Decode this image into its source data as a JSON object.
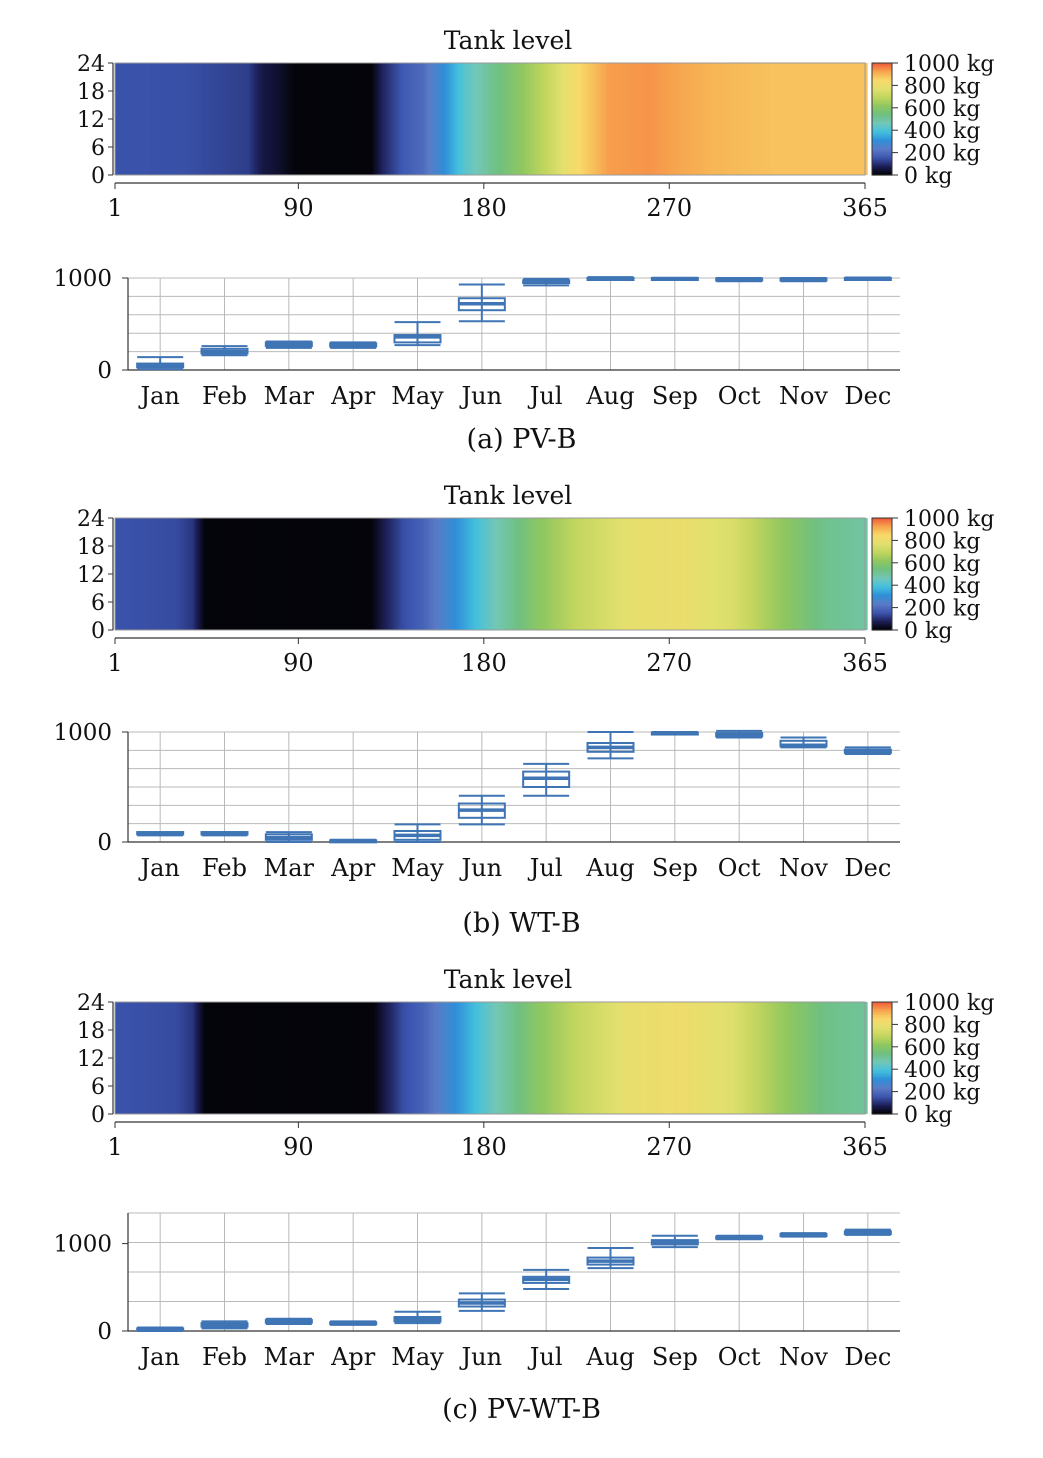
{
  "colors": {
    "ramp": [
      "#000000",
      "#1d1f58",
      "#3c56b0",
      "#5a7bc6",
      "#2f8fd8",
      "#43c0de",
      "#72c7b7",
      "#6fc080",
      "#8fc75f",
      "#c1d55e",
      "#e2e06e",
      "#f8d96a",
      "#f7a54e",
      "#f0583a"
    ],
    "box": "#3f74b5",
    "grid": "#b9b9b9",
    "axis": "#333333"
  },
  "chart_data": [
    {
      "type": "heatmap",
      "title": "Tank level",
      "caption": "(a) PV-B",
      "y_ticks": [
        "24",
        "18",
        "12",
        "6",
        "0"
      ],
      "x_ticks": [
        "1",
        "90",
        "180",
        "270",
        "365"
      ],
      "xlim": [
        1,
        365
      ],
      "colorbar": {
        "ticks": [
          "1000 kg",
          "800 kg",
          "600 kg",
          "400 kg",
          "200 kg",
          "0 kg"
        ],
        "range": [
          0,
          1000
        ]
      },
      "day_profile": [
        [
          1,
          150
        ],
        [
          35,
          145
        ],
        [
          65,
          120
        ],
        [
          72,
          60
        ],
        [
          80,
          40
        ],
        [
          88,
          10
        ],
        [
          125,
          10
        ],
        [
          130,
          80
        ],
        [
          140,
          160
        ],
        [
          150,
          200
        ],
        [
          160,
          300
        ],
        [
          170,
          420
        ],
        [
          190,
          560
        ],
        [
          210,
          700
        ],
        [
          225,
          840
        ],
        [
          240,
          930
        ],
        [
          260,
          940
        ],
        [
          290,
          900
        ],
        [
          320,
          880
        ],
        [
          365,
          880
        ]
      ]
    },
    {
      "type": "box",
      "categories": [
        "Jan",
        "Feb",
        "Mar",
        "Apr",
        "May",
        "Jun",
        "Jul",
        "Aug",
        "Sep",
        "Oct",
        "Nov",
        "Dec"
      ],
      "y_ticks": [
        "1000",
        "0"
      ],
      "ylim": [
        0,
        1000
      ],
      "boxes": [
        {
          "low": 10,
          "q1": 30,
          "med": 50,
          "q3": 70,
          "high": 140
        },
        {
          "low": 160,
          "q1": 180,
          "med": 200,
          "q3": 230,
          "high": 260
        },
        {
          "low": 240,
          "q1": 260,
          "med": 280,
          "q3": 300,
          "high": 310
        },
        {
          "low": 240,
          "q1": 255,
          "med": 270,
          "q3": 290,
          "high": 300
        },
        {
          "low": 270,
          "q1": 300,
          "med": 360,
          "q3": 380,
          "high": 520
        },
        {
          "low": 530,
          "q1": 650,
          "med": 720,
          "q3": 780,
          "high": 930
        },
        {
          "low": 920,
          "q1": 945,
          "med": 960,
          "q3": 975,
          "high": 990
        },
        {
          "low": 980,
          "q1": 990,
          "med": 995,
          "q3": 1000,
          "high": 1010
        },
        {
          "low": 985,
          "q1": 990,
          "med": 995,
          "q3": 1000,
          "high": 1000
        },
        {
          "low": 965,
          "q1": 975,
          "med": 985,
          "q3": 995,
          "high": 1000
        },
        {
          "low": 965,
          "q1": 975,
          "med": 985,
          "q3": 995,
          "high": 1000
        },
        {
          "low": 985,
          "q1": 990,
          "med": 995,
          "q3": 1000,
          "high": 1005
        }
      ]
    },
    {
      "type": "heatmap",
      "title": "Tank level",
      "caption": "(b) WT-B",
      "y_ticks": [
        "24",
        "18",
        "12",
        "6",
        "0"
      ],
      "x_ticks": [
        "1",
        "90",
        "180",
        "270",
        "365"
      ],
      "xlim": [
        1,
        365
      ],
      "colorbar": {
        "ticks": [
          "1000 kg",
          "800 kg",
          "600 kg",
          "400 kg",
          "200 kg",
          "0 kg"
        ],
        "range": [
          0,
          1000
        ]
      },
      "day_profile": [
        [
          1,
          150
        ],
        [
          30,
          140
        ],
        [
          38,
          110
        ],
        [
          44,
          10
        ],
        [
          125,
          10
        ],
        [
          130,
          60
        ],
        [
          140,
          140
        ],
        [
          150,
          180
        ],
        [
          160,
          260
        ],
        [
          170,
          340
        ],
        [
          185,
          460
        ],
        [
          205,
          600
        ],
        [
          225,
          700
        ],
        [
          250,
          780
        ],
        [
          275,
          800
        ],
        [
          300,
          750
        ],
        [
          320,
          640
        ],
        [
          345,
          520
        ],
        [
          365,
          490
        ]
      ]
    },
    {
      "type": "box",
      "categories": [
        "Jan",
        "Feb",
        "Mar",
        "Apr",
        "May",
        "Jun",
        "Jul",
        "Aug",
        "Sep",
        "Oct",
        "Nov",
        "Dec"
      ],
      "y_ticks": [
        "1000",
        "0"
      ],
      "ylim": [
        0,
        1000
      ],
      "boxes": [
        {
          "low": 60,
          "q1": 70,
          "med": 80,
          "q3": 90,
          "high": 90
        },
        {
          "low": 60,
          "q1": 70,
          "med": 80,
          "q3": 90,
          "high": 90
        },
        {
          "low": 0,
          "q1": 20,
          "med": 40,
          "q3": 70,
          "high": 90
        },
        {
          "low": 0,
          "q1": 5,
          "med": 10,
          "q3": 15,
          "high": 20
        },
        {
          "low": 0,
          "q1": 20,
          "med": 60,
          "q3": 100,
          "high": 160
        },
        {
          "low": 160,
          "q1": 220,
          "med": 290,
          "q3": 350,
          "high": 420
        },
        {
          "low": 420,
          "q1": 500,
          "med": 580,
          "q3": 640,
          "high": 710
        },
        {
          "low": 760,
          "q1": 820,
          "med": 860,
          "q3": 900,
          "high": 1000
        },
        {
          "low": 980,
          "q1": 985,
          "med": 990,
          "q3": 995,
          "high": 1000
        },
        {
          "low": 950,
          "q1": 960,
          "med": 975,
          "q3": 990,
          "high": 1010
        },
        {
          "low": 860,
          "q1": 870,
          "med": 880,
          "q3": 920,
          "high": 950
        },
        {
          "low": 800,
          "q1": 810,
          "med": 820,
          "q3": 840,
          "high": 860
        }
      ]
    },
    {
      "type": "heatmap",
      "title": "Tank level",
      "caption": "(c) PV-WT-B",
      "y_ticks": [
        "24",
        "18",
        "12",
        "6",
        "0"
      ],
      "x_ticks": [
        "1",
        "90",
        "180",
        "270",
        "365"
      ],
      "xlim": [
        1,
        365
      ],
      "colorbar": {
        "ticks": [
          "1000 kg",
          "800 kg",
          "600 kg",
          "400 kg",
          "200 kg",
          "0 kg"
        ],
        "range": [
          0,
          1000
        ]
      },
      "day_profile": [
        [
          1,
          150
        ],
        [
          30,
          140
        ],
        [
          38,
          110
        ],
        [
          44,
          10
        ],
        [
          126,
          10
        ],
        [
          131,
          60
        ],
        [
          140,
          140
        ],
        [
          150,
          180
        ],
        [
          160,
          260
        ],
        [
          170,
          340
        ],
        [
          185,
          460
        ],
        [
          205,
          600
        ],
        [
          225,
          700
        ],
        [
          250,
          790
        ],
        [
          275,
          810
        ],
        [
          300,
          760
        ],
        [
          320,
          650
        ],
        [
          345,
          530
        ],
        [
          365,
          500
        ]
      ]
    },
    {
      "type": "box",
      "categories": [
        "Jan",
        "Feb",
        "Mar",
        "Apr",
        "May",
        "Jun",
        "Jul",
        "Aug",
        "Sep",
        "Oct",
        "Nov",
        "Dec"
      ],
      "y_ticks": [
        "1000",
        "0"
      ],
      "ylim": [
        0,
        1350
      ],
      "boxes": [
        {
          "low": 0,
          "q1": 10,
          "med": 20,
          "q3": 30,
          "high": 40
        },
        {
          "low": 30,
          "q1": 50,
          "med": 70,
          "q3": 90,
          "high": 110
        },
        {
          "low": 80,
          "q1": 95,
          "med": 110,
          "q3": 125,
          "high": 140
        },
        {
          "low": 70,
          "q1": 80,
          "med": 90,
          "q3": 100,
          "high": 110
        },
        {
          "low": 90,
          "q1": 110,
          "med": 130,
          "q3": 160,
          "high": 220
        },
        {
          "low": 230,
          "q1": 280,
          "med": 320,
          "q3": 360,
          "high": 430
        },
        {
          "low": 480,
          "q1": 550,
          "med": 590,
          "q3": 620,
          "high": 700
        },
        {
          "low": 720,
          "q1": 760,
          "med": 800,
          "q3": 840,
          "high": 950
        },
        {
          "low": 960,
          "q1": 990,
          "med": 1010,
          "q3": 1040,
          "high": 1090
        },
        {
          "low": 1050,
          "q1": 1060,
          "med": 1070,
          "q3": 1080,
          "high": 1090
        },
        {
          "low": 1080,
          "q1": 1090,
          "med": 1100,
          "q3": 1110,
          "high": 1120
        },
        {
          "low": 1100,
          "q1": 1110,
          "med": 1120,
          "q3": 1140,
          "high": 1160
        }
      ]
    }
  ]
}
